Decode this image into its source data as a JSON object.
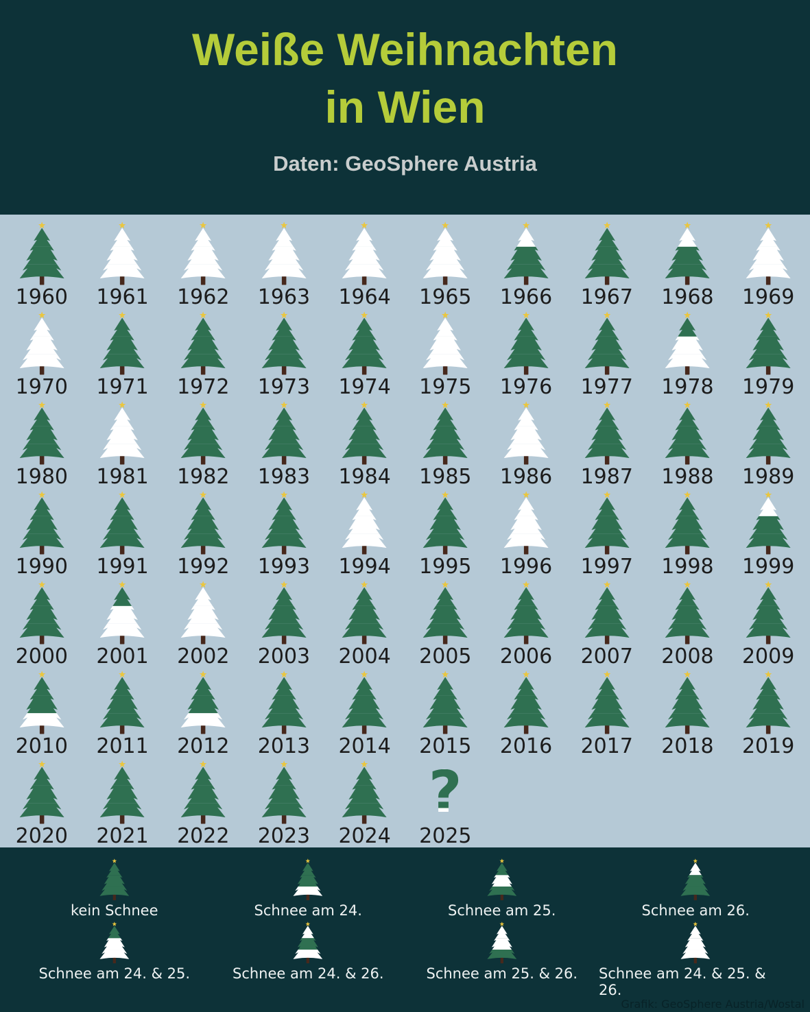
{
  "header": {
    "title_line1": "Weiße Weihnachten",
    "title_line2": "in Wien",
    "subtitle": "Daten: GeoSphere Austria"
  },
  "credit": "Grafik: GeoSphere Austria/Wostal",
  "colors": {
    "header_bg": "#0d3238",
    "main_bg": "#b5c9d6",
    "title": "#b5cc3a",
    "subtitle": "#c9cdcd",
    "tree_green": "#2f7051",
    "snow_white": "#ffffff",
    "trunk_brown": "#46281c",
    "star_gold": "#eac63e",
    "year_text": "#1c1c1c",
    "legend_text": "#eef2f2",
    "credit_text": "#082227"
  },
  "legend": [
    {
      "type": "none",
      "label": "kein Schnee"
    },
    {
      "type": "24",
      "label": "Schnee am 24."
    },
    {
      "type": "25",
      "label": "Schnee am 25."
    },
    {
      "type": "26",
      "label": "Schnee am 26."
    },
    {
      "type": "24_25",
      "label": "Schnee am 24. & 25."
    },
    {
      "type": "24_26",
      "label": "Schnee am 24. & 26."
    },
    {
      "type": "25_26",
      "label": "Schnee am 25. & 26."
    },
    {
      "type": "24_25_26",
      "label": "Schnee am 24. & 25. & 26."
    }
  ],
  "chart_data": {
    "type": "pictogram",
    "title": "Weiße Weihnachten in Wien",
    "subtitle": "Daten: GeoSphere Austria",
    "description": "Each Christmas tree encodes snow in Vienna at Christmas: bottom segment = snow on Dec 24, middle = Dec 25, top = Dec 26; white segment means snow on that day, fully white tree means snow on all three days, fully green tree means no snow. 2025 is shown as a question mark (unknown).",
    "x_range": [
      1960,
      2025
    ],
    "legend_position": "bottom",
    "snow_codes": {
      "none": "kein Schnee",
      "24": "Schnee am 24.",
      "25": "Schnee am 25.",
      "26": "Schnee am 26.",
      "24_25": "Schnee am 24. & 25.",
      "24_26": "Schnee am 24. & 26.",
      "25_26": "Schnee am 25. & 26.",
      "24_25_26": "Schnee am 24. & 25. & 26.",
      "unknown": "?"
    },
    "years": [
      {
        "year": 1960,
        "snow": "none"
      },
      {
        "year": 1961,
        "snow": "24_25_26"
      },
      {
        "year": 1962,
        "snow": "24_25_26"
      },
      {
        "year": 1963,
        "snow": "24_25_26"
      },
      {
        "year": 1964,
        "snow": "24_25_26"
      },
      {
        "year": 1965,
        "snow": "24_25_26"
      },
      {
        "year": 1966,
        "snow": "26"
      },
      {
        "year": 1967,
        "snow": "none"
      },
      {
        "year": 1968,
        "snow": "26"
      },
      {
        "year": 1969,
        "snow": "24_25_26"
      },
      {
        "year": 1970,
        "snow": "24_25_26"
      },
      {
        "year": 1971,
        "snow": "none"
      },
      {
        "year": 1972,
        "snow": "none"
      },
      {
        "year": 1973,
        "snow": "none"
      },
      {
        "year": 1974,
        "snow": "none"
      },
      {
        "year": 1975,
        "snow": "24_25_26"
      },
      {
        "year": 1976,
        "snow": "none"
      },
      {
        "year": 1977,
        "snow": "none"
      },
      {
        "year": 1978,
        "snow": "24_25"
      },
      {
        "year": 1979,
        "snow": "none"
      },
      {
        "year": 1980,
        "snow": "none"
      },
      {
        "year": 1981,
        "snow": "24_25_26"
      },
      {
        "year": 1982,
        "snow": "none"
      },
      {
        "year": 1983,
        "snow": "none"
      },
      {
        "year": 1984,
        "snow": "none"
      },
      {
        "year": 1985,
        "snow": "none"
      },
      {
        "year": 1986,
        "snow": "24_25_26"
      },
      {
        "year": 1987,
        "snow": "none"
      },
      {
        "year": 1988,
        "snow": "none"
      },
      {
        "year": 1989,
        "snow": "none"
      },
      {
        "year": 1990,
        "snow": "none"
      },
      {
        "year": 1991,
        "snow": "none"
      },
      {
        "year": 1992,
        "snow": "none"
      },
      {
        "year": 1993,
        "snow": "none"
      },
      {
        "year": 1994,
        "snow": "24_25_26"
      },
      {
        "year": 1995,
        "snow": "none"
      },
      {
        "year": 1996,
        "snow": "24_25_26"
      },
      {
        "year": 1997,
        "snow": "none"
      },
      {
        "year": 1998,
        "snow": "none"
      },
      {
        "year": 1999,
        "snow": "26"
      },
      {
        "year": 2000,
        "snow": "none"
      },
      {
        "year": 2001,
        "snow": "24_25"
      },
      {
        "year": 2002,
        "snow": "24_25_26"
      },
      {
        "year": 2003,
        "snow": "none"
      },
      {
        "year": 2004,
        "snow": "none"
      },
      {
        "year": 2005,
        "snow": "none"
      },
      {
        "year": 2006,
        "snow": "none"
      },
      {
        "year": 2007,
        "snow": "none"
      },
      {
        "year": 2008,
        "snow": "none"
      },
      {
        "year": 2009,
        "snow": "none"
      },
      {
        "year": 2010,
        "snow": "24"
      },
      {
        "year": 2011,
        "snow": "none"
      },
      {
        "year": 2012,
        "snow": "24"
      },
      {
        "year": 2013,
        "snow": "none"
      },
      {
        "year": 2014,
        "snow": "none"
      },
      {
        "year": 2015,
        "snow": "none"
      },
      {
        "year": 2016,
        "snow": "none"
      },
      {
        "year": 2017,
        "snow": "none"
      },
      {
        "year": 2018,
        "snow": "none"
      },
      {
        "year": 2019,
        "snow": "none"
      },
      {
        "year": 2020,
        "snow": "none"
      },
      {
        "year": 2021,
        "snow": "none"
      },
      {
        "year": 2022,
        "snow": "none"
      },
      {
        "year": 2023,
        "snow": "none"
      },
      {
        "year": 2024,
        "snow": "none"
      },
      {
        "year": 2025,
        "snow": "unknown"
      }
    ]
  }
}
